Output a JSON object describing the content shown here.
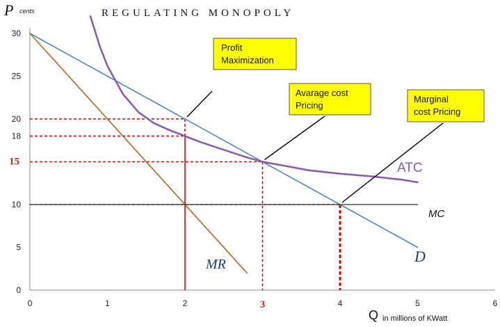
{
  "chart_data": {
    "type": "line",
    "title": "REGULATING MONOPOLY",
    "ylabel": "P",
    "ylabel_unit": "cents",
    "xlabel": "Q",
    "xlabel_unit": "in millions of KWatt",
    "xlim": [
      0,
      6
    ],
    "ylim": [
      0,
      32
    ],
    "x_ticks": [
      "0",
      "1",
      "2",
      "3",
      "4",
      "5",
      "6"
    ],
    "x_ticks_highlight": [
      "3"
    ],
    "y_ticks": [
      "0",
      "5",
      "10",
      "15",
      "18",
      "20",
      "25",
      "30"
    ],
    "y_ticks_highlight": [
      "15"
    ],
    "grid": false,
    "series": [
      {
        "name": "D",
        "color": "#4a86c5",
        "x": [
          0,
          5
        ],
        "y": [
          30,
          5
        ]
      },
      {
        "name": "MR",
        "color": "#b5651d",
        "x": [
          0,
          2.8
        ],
        "y": [
          30,
          2
        ]
      },
      {
        "name": "MC",
        "color": "#333333",
        "x": [
          0,
          5
        ],
        "y": [
          10,
          10
        ]
      },
      {
        "name": "ATC",
        "color": "#8a5ca8",
        "x": [
          0.78,
          0.9,
          1.0,
          1.2,
          1.4,
          1.6,
          1.8,
          2.0,
          2.2,
          2.5,
          2.8,
          3.0,
          3.3,
          3.6,
          4.0,
          4.4,
          4.8,
          5.0
        ],
        "y": [
          32,
          28.5,
          26.2,
          22.9,
          20.8,
          19.5,
          18.7,
          18.0,
          17.3,
          16.4,
          15.5,
          15.0,
          14.5,
          14.0,
          13.6,
          13.3,
          12.9,
          12.6
        ]
      }
    ],
    "reference_lines": [
      {
        "x": 2,
        "y": 20
      },
      {
        "x": 2,
        "y": 18
      },
      {
        "x": 3,
        "y": 15
      },
      {
        "x": 4,
        "y": 10
      }
    ],
    "annotations": [
      {
        "text": [
          "Profit",
          "Maximization"
        ],
        "x": 2,
        "y": 20
      },
      {
        "text": [
          "Avarage cost",
          "Pricing"
        ],
        "x": 3,
        "y": 15
      },
      {
        "text": [
          "Marginal",
          "cost Pricing"
        ],
        "x": 4,
        "y": 10
      }
    ],
    "curve_labels": [
      "MR",
      "ATC",
      "MC",
      "D"
    ]
  }
}
